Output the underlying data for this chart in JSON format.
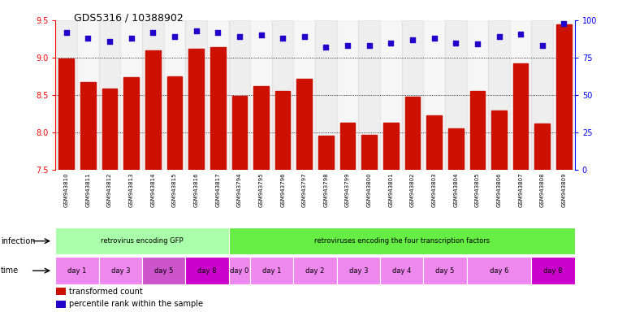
{
  "title": "GDS5316 / 10388902",
  "samples": [
    "GSM943810",
    "GSM943811",
    "GSM943812",
    "GSM943813",
    "GSM943814",
    "GSM943815",
    "GSM943816",
    "GSM943817",
    "GSM943794",
    "GSM943795",
    "GSM943796",
    "GSM943797",
    "GSM943798",
    "GSM943799",
    "GSM943800",
    "GSM943801",
    "GSM943802",
    "GSM943803",
    "GSM943804",
    "GSM943805",
    "GSM943806",
    "GSM943807",
    "GSM943808",
    "GSM943809"
  ],
  "bar_values": [
    8.99,
    8.67,
    8.59,
    8.74,
    9.1,
    8.75,
    9.12,
    9.14,
    8.49,
    8.62,
    8.56,
    8.72,
    7.96,
    8.13,
    7.97,
    8.13,
    8.48,
    8.23,
    8.06,
    8.56,
    8.3,
    8.92,
    8.12,
    9.44
  ],
  "percentile_values": [
    92,
    88,
    86,
    88,
    92,
    89,
    93,
    92,
    89,
    90,
    88,
    89,
    82,
    83,
    83,
    85,
    87,
    88,
    85,
    84,
    89,
    91,
    83,
    98
  ],
  "ylim_left": [
    7.5,
    9.5
  ],
  "ylim_right": [
    0,
    100
  ],
  "yticks_left": [
    7.5,
    8.0,
    8.5,
    9.0,
    9.5
  ],
  "yticks_right": [
    0,
    25,
    50,
    75,
    100
  ],
  "bar_color": "#cc1100",
  "dot_color": "#2200cc",
  "infection_groups": [
    {
      "label": "retrovirus encoding GFP",
      "start": 0,
      "end": 8,
      "color": "#aaffaa"
    },
    {
      "label": "retroviruses encoding the four transcription factors",
      "start": 8,
      "end": 24,
      "color": "#66ee44"
    }
  ],
  "time_groups": [
    {
      "label": "day 1",
      "start": 0,
      "end": 2,
      "color": "#ee88ee"
    },
    {
      "label": "day 3",
      "start": 2,
      "end": 4,
      "color": "#ee88ee"
    },
    {
      "label": "day 5",
      "start": 4,
      "end": 6,
      "color": "#cc55cc"
    },
    {
      "label": "day 8",
      "start": 6,
      "end": 8,
      "color": "#cc00cc"
    },
    {
      "label": "day 0",
      "start": 8,
      "end": 9,
      "color": "#ee88ee"
    },
    {
      "label": "day 1",
      "start": 9,
      "end": 11,
      "color": "#ee88ee"
    },
    {
      "label": "day 2",
      "start": 11,
      "end": 13,
      "color": "#ee88ee"
    },
    {
      "label": "day 3",
      "start": 13,
      "end": 15,
      "color": "#ee88ee"
    },
    {
      "label": "day 4",
      "start": 15,
      "end": 17,
      "color": "#ee88ee"
    },
    {
      "label": "day 5",
      "start": 17,
      "end": 19,
      "color": "#ee88ee"
    },
    {
      "label": "day 6",
      "start": 19,
      "end": 22,
      "color": "#ee88ee"
    },
    {
      "label": "day 8",
      "start": 22,
      "end": 24,
      "color": "#cc00cc"
    }
  ],
  "grid_values": [
    8.0,
    8.5,
    9.0
  ],
  "legend_items": [
    {
      "label": "transformed count",
      "color": "#cc1100"
    },
    {
      "label": "percentile rank within the sample",
      "color": "#2200cc"
    }
  ],
  "col_bg_even": "#d0d0d0",
  "col_bg_odd": "#e8e8e8"
}
